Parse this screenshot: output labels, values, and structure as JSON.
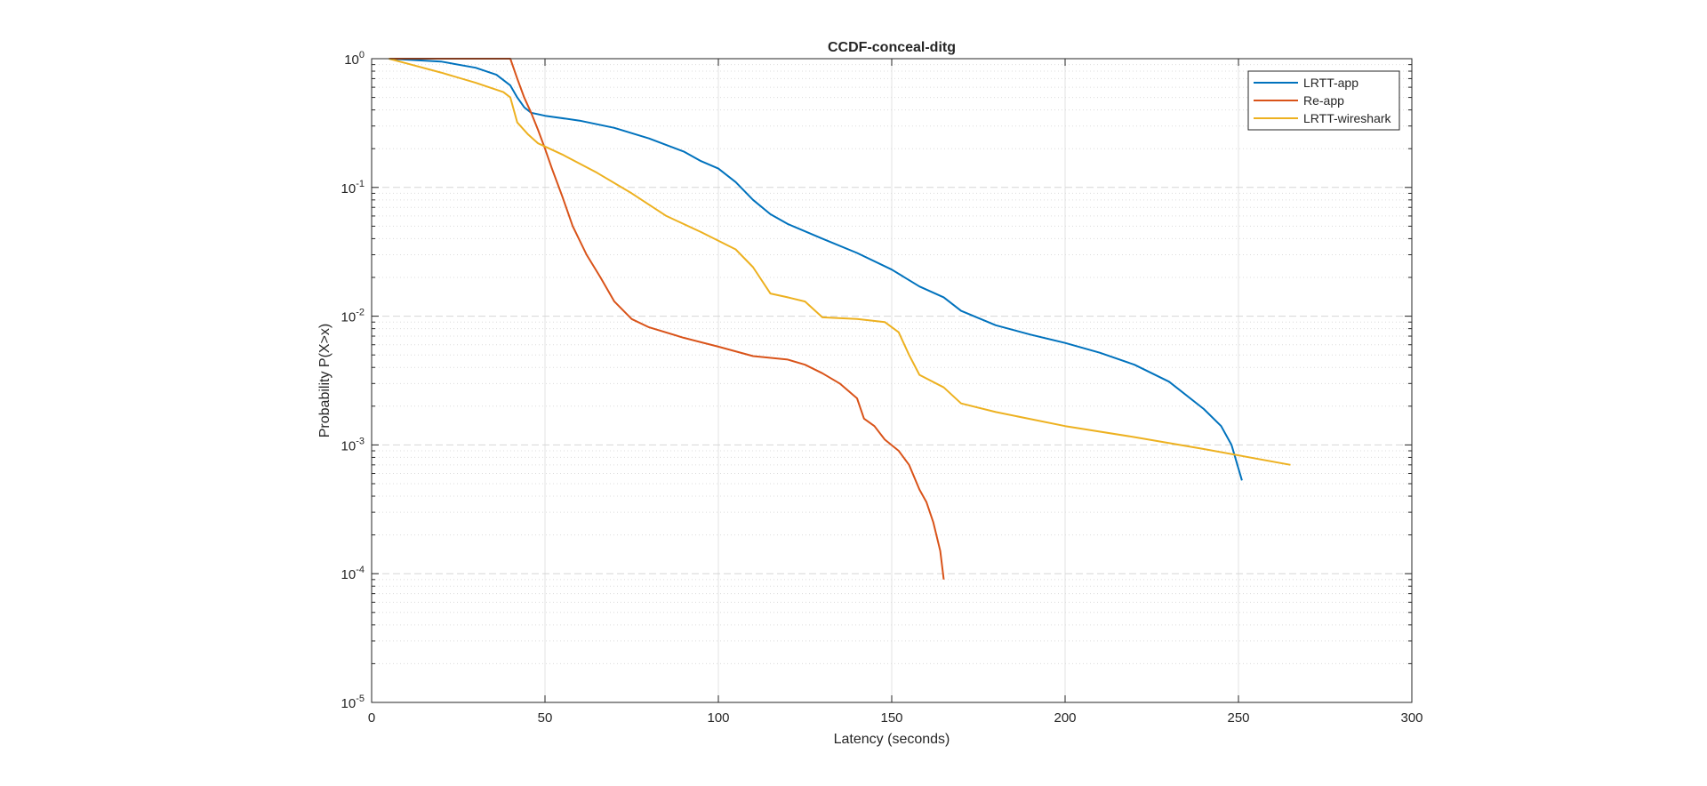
{
  "chart_data": {
    "type": "line",
    "title": "CCDF-conceal-ditg",
    "xlabel": "Latency (seconds)",
    "ylabel": "Probability P(X>x)",
    "xlim": [
      0,
      300
    ],
    "ylim": [
      1e-05,
      1
    ],
    "yscale": "log",
    "grid": true,
    "legend_position": "top-right",
    "x_ticks": [
      "0",
      "50",
      "100",
      "150",
      "200",
      "250",
      "300"
    ],
    "y_ticks": [
      {
        "base": "10",
        "exp": "0"
      },
      {
        "base": "10",
        "exp": "-1"
      },
      {
        "base": "10",
        "exp": "-2"
      },
      {
        "base": "10",
        "exp": "-3"
      },
      {
        "base": "10",
        "exp": "-4"
      },
      {
        "base": "10",
        "exp": "-5"
      }
    ],
    "series": [
      {
        "name": "LRTT-app",
        "color": "#0072BD",
        "points": [
          [
            5,
            1.0
          ],
          [
            20,
            0.95
          ],
          [
            30,
            0.85
          ],
          [
            36,
            0.75
          ],
          [
            40,
            0.62
          ],
          [
            42,
            0.5
          ],
          [
            44,
            0.42
          ],
          [
            46,
            0.38
          ],
          [
            50,
            0.36
          ],
          [
            60,
            0.33
          ],
          [
            70,
            0.29
          ],
          [
            80,
            0.24
          ],
          [
            90,
            0.19
          ],
          [
            95,
            0.16
          ],
          [
            100,
            0.14
          ],
          [
            105,
            0.11
          ],
          [
            110,
            0.08
          ],
          [
            115,
            0.062
          ],
          [
            120,
            0.052
          ],
          [
            130,
            0.04
          ],
          [
            140,
            0.031
          ],
          [
            150,
            0.023
          ],
          [
            158,
            0.017
          ],
          [
            165,
            0.014
          ],
          [
            170,
            0.011
          ],
          [
            180,
            0.0085
          ],
          [
            190,
            0.0072
          ],
          [
            200,
            0.0062
          ],
          [
            210,
            0.0052
          ],
          [
            220,
            0.0042
          ],
          [
            230,
            0.0031
          ],
          [
            240,
            0.0019
          ],
          [
            245,
            0.0014
          ],
          [
            248,
            0.001
          ],
          [
            251,
            0.00053
          ]
        ]
      },
      {
        "name": "Re-app",
        "color": "#D95319",
        "points": [
          [
            5,
            1.0
          ],
          [
            40,
            1.0
          ],
          [
            42,
            0.7
          ],
          [
            44,
            0.5
          ],
          [
            46,
            0.38
          ],
          [
            48,
            0.28
          ],
          [
            50,
            0.2
          ],
          [
            52,
            0.14
          ],
          [
            55,
            0.085
          ],
          [
            58,
            0.05
          ],
          [
            62,
            0.03
          ],
          [
            66,
            0.02
          ],
          [
            70,
            0.013
          ],
          [
            75,
            0.0095
          ],
          [
            80,
            0.0082
          ],
          [
            90,
            0.0068
          ],
          [
            100,
            0.0058
          ],
          [
            110,
            0.0049
          ],
          [
            120,
            0.0046
          ],
          [
            125,
            0.0042
          ],
          [
            130,
            0.0036
          ],
          [
            135,
            0.003
          ],
          [
            140,
            0.0023
          ],
          [
            142,
            0.0016
          ],
          [
            145,
            0.0014
          ],
          [
            148,
            0.0011
          ],
          [
            152,
            0.0009
          ],
          [
            155,
            0.0007
          ],
          [
            158,
            0.00045
          ],
          [
            160,
            0.00036
          ],
          [
            162,
            0.00025
          ],
          [
            164,
            0.00015
          ],
          [
            165,
            9e-05
          ]
        ]
      },
      {
        "name": "LRTT-wireshark",
        "color": "#EDB120",
        "points": [
          [
            5,
            1.0
          ],
          [
            10,
            0.92
          ],
          [
            20,
            0.78
          ],
          [
            30,
            0.65
          ],
          [
            38,
            0.55
          ],
          [
            40,
            0.5
          ],
          [
            42,
            0.32
          ],
          [
            45,
            0.26
          ],
          [
            48,
            0.22
          ],
          [
            55,
            0.18
          ],
          [
            65,
            0.13
          ],
          [
            75,
            0.09
          ],
          [
            85,
            0.06
          ],
          [
            95,
            0.045
          ],
          [
            105,
            0.033
          ],
          [
            110,
            0.024
          ],
          [
            115,
            0.015
          ],
          [
            120,
            0.014
          ],
          [
            125,
            0.013
          ],
          [
            130,
            0.0098
          ],
          [
            140,
            0.0095
          ],
          [
            148,
            0.009
          ],
          [
            152,
            0.0075
          ],
          [
            155,
            0.005
          ],
          [
            158,
            0.0035
          ],
          [
            165,
            0.0028
          ],
          [
            170,
            0.0021
          ],
          [
            180,
            0.0018
          ],
          [
            200,
            0.0014
          ],
          [
            220,
            0.00115
          ],
          [
            240,
            0.00093
          ],
          [
            265,
            0.0007
          ]
        ]
      }
    ]
  }
}
